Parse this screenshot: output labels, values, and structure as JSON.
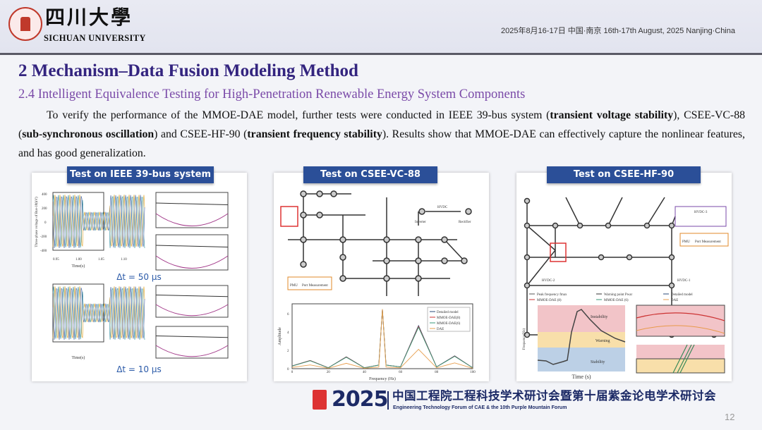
{
  "header": {
    "logo_cn": "四川大學",
    "logo_en": "SICHUAN UNIVERSITY",
    "event_date": "2025年8月16-17日   中国·南京   16th-17th August, 2025   Nanjing·China"
  },
  "title": "2 Mechanism–Data Fusion Modeling Method",
  "subtitle": "2.4 Intelligent Equivalence Testing for High-Penetration Renewable Energy System Components",
  "body": {
    "t1": "To verify the performance of the MMOE-DAE model, further tests were conducted in IEEE 39-bus system (",
    "b1": "transient voltage stability",
    "t2": "), CSEE-VC-88 (",
    "b2": "sub-synchronous oscillation",
    "t3": ") and CSEE-HF-90 (",
    "b3": "transient frequency stability",
    "t4": "). Results show that MMOE-DAE can effectively capture the nonlinear features, and has good generalization."
  },
  "panels": [
    {
      "title": "Test on IEEE 39-bus system",
      "dt1": "Δt = 50 μs",
      "dt2": "Δt = 10 μs",
      "ylabel": "Three-phase voltage of Bus-18(kV)",
      "xlabel": "Time(s)",
      "xticks": [
        "0.95",
        "1.00",
        "1.05",
        "1.10"
      ],
      "yticks": [
        "400",
        "200",
        "0",
        "-200",
        "-400"
      ]
    },
    {
      "title": "Test on CSEE-VC-88",
      "xlabel": "Frequency (Hz)",
      "ylabel": "Amplitude",
      "xticks": [
        "0",
        "20",
        "40",
        "60",
        "80",
        "100"
      ],
      "yticks": [
        "0",
        "2",
        "4",
        "6"
      ],
      "legend": [
        "Detailed model",
        "MMOE-DAE(8)",
        "MMOE-DAE(6)",
        "DAE"
      ],
      "pmu": "PMU",
      "port": "Port Measurement",
      "hvdc": "HVDC",
      "inverter": "Inverter",
      "rectifier": "Rectifier"
    },
    {
      "title": "Test on CSEE-HF-90",
      "legend": [
        "Peak frequency fmax",
        "Warning point Pwar",
        "Detailed model",
        "MMOE-DAE (8)",
        "MMOE-DAE (6)",
        "DAE"
      ],
      "zones": [
        "Instability",
        "Warning",
        "Stability"
      ],
      "xlabel": "Time (s)",
      "ylabel": "Frequency(Hz)",
      "hvdc": [
        "HVDC-3",
        "HVDC-2",
        "HVDC-1"
      ],
      "pmu": "PMU",
      "port": "Port Measurement"
    }
  ],
  "footer": {
    "year": "2025",
    "cn": "中国工程院工程科技学术研讨会暨第十届紫金论电学术研讨会",
    "en": "Engineering Technology Forum of CAE & the 10th Purple Mountain Forum",
    "page": "12"
  },
  "colors": {
    "title": "#33247f",
    "subtitle": "#7a4aa8",
    "panel_head": "#2b4f98"
  }
}
